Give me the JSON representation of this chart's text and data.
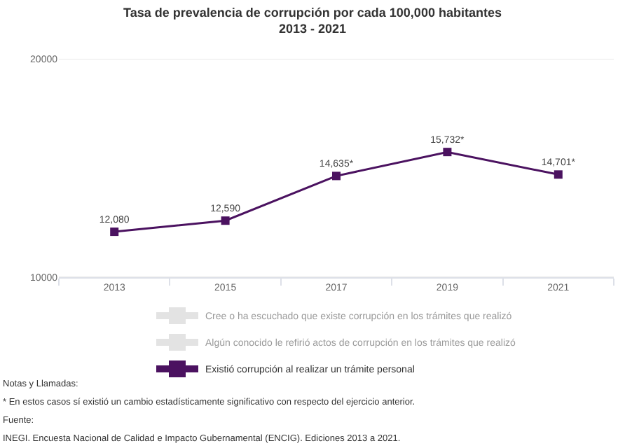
{
  "chart_data": {
    "type": "line",
    "title": "Tasa de prevalencia de corrupción por cada 100,000 habitantes\n2013 - 2021",
    "categories": [
      "2013",
      "2015",
      "2017",
      "2019",
      "2021"
    ],
    "series": [
      {
        "name": "Cree o ha escuchado que existe corrupción en los trámites que realizó",
        "color": "#c8c8c8",
        "values": [
          null,
          null,
          null,
          null,
          null
        ]
      },
      {
        "name": "Algún conocido le refirió actos de corrupción en los trámites que realizó",
        "color": "#c8c8c8",
        "values": [
          null,
          null,
          null,
          null,
          null
        ]
      },
      {
        "name": "Existió corrupción al realizar un trámite personal",
        "color": "#4b1260",
        "values": [
          12080,
          12590,
          14635,
          15732,
          14701
        ],
        "value_labels": [
          "12,080",
          "12,590",
          "14,635*",
          "15,732*",
          "14,701*"
        ]
      }
    ],
    "ylim": [
      10000,
      20000
    ],
    "yticks": [
      10000,
      20000
    ],
    "grid": "y",
    "legend": "bottom",
    "marker": "square",
    "line_style": "solid",
    "annotations": [
      "Notas y Llamadas:",
      "* En estos casos sí existió un cambio estadísticamente significativo con respecto del ejercicio anterior.",
      "Fuente:",
      "INEGI. Encuesta Nacional de Calidad e Impacto Gubernamental (ENCIG). Ediciones 2013 a 2021."
    ]
  }
}
